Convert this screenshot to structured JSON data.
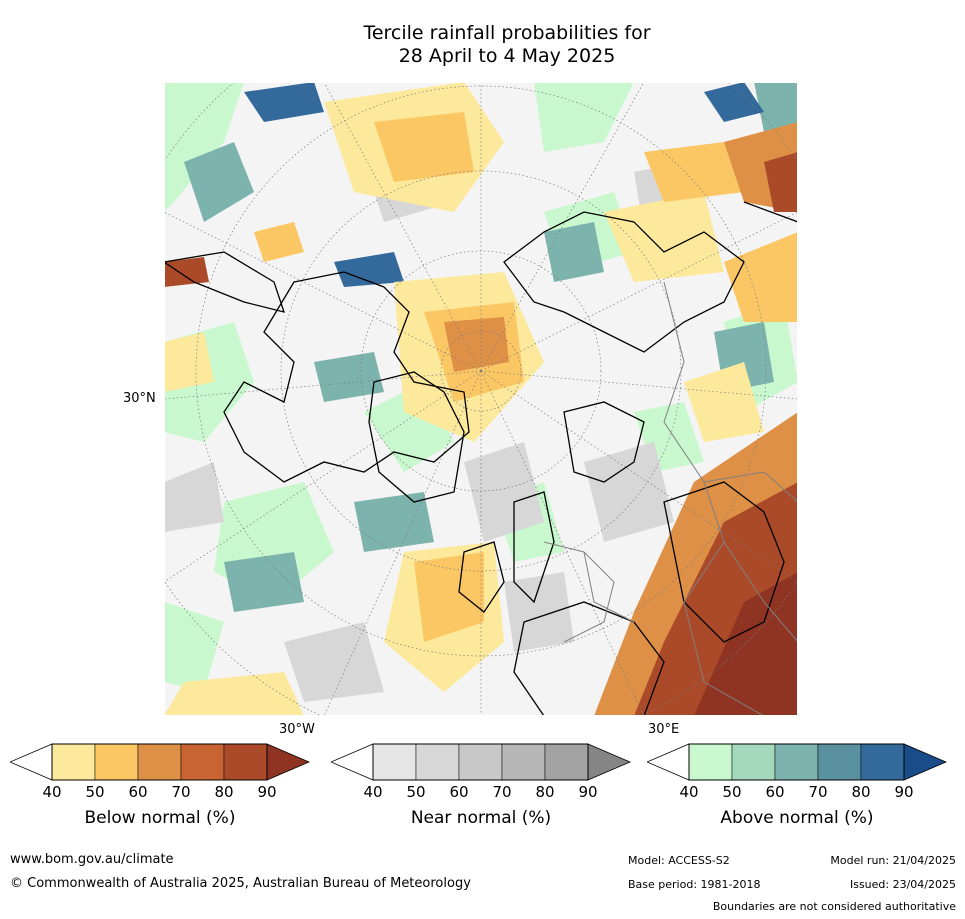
{
  "title": {
    "line1": "Tercile rainfall probabilities for",
    "line2": "28 April to 4 May 2025"
  },
  "map": {
    "lat_label": "30°N",
    "lon_labels": [
      "30°W",
      "30°E"
    ]
  },
  "legend": {
    "below": {
      "label": "Below normal (%)",
      "ticks": [
        "40",
        "50",
        "60",
        "70",
        "80",
        "90"
      ],
      "colors": [
        "#ffffff",
        "#fde99b",
        "#fbc765",
        "#de9047",
        "#c86332",
        "#ab4a28",
        "#8f3322"
      ]
    },
    "near": {
      "label": "Near normal (%)",
      "ticks": [
        "40",
        "50",
        "60",
        "70",
        "80",
        "90"
      ],
      "colors": [
        "#ffffff",
        "#e6e6e6",
        "#d7d7d7",
        "#c8c8c8",
        "#b7b7b7",
        "#a3a3a3",
        "#858585"
      ]
    },
    "above": {
      "label": "Above normal (%)",
      "ticks": [
        "40",
        "50",
        "60",
        "70",
        "80",
        "90"
      ],
      "colors": [
        "#ffffff",
        "#c9f8cf",
        "#a5d9bd",
        "#7db3ad",
        "#5a91a0",
        "#336a9b",
        "#1a4c8a"
      ]
    }
  },
  "footer": {
    "url": "www.bom.gov.au/climate",
    "copyright": "© Commonwealth of Australia 2025, Australian Bureau of Meteorology",
    "model": "Model: ACCESS-S2",
    "base_period": "Base period: 1981-2018",
    "model_run": "Model run: 21/04/2025",
    "issued": "Issued: 23/04/2025",
    "disclaimer": "Boundaries are not considered authoritative"
  }
}
